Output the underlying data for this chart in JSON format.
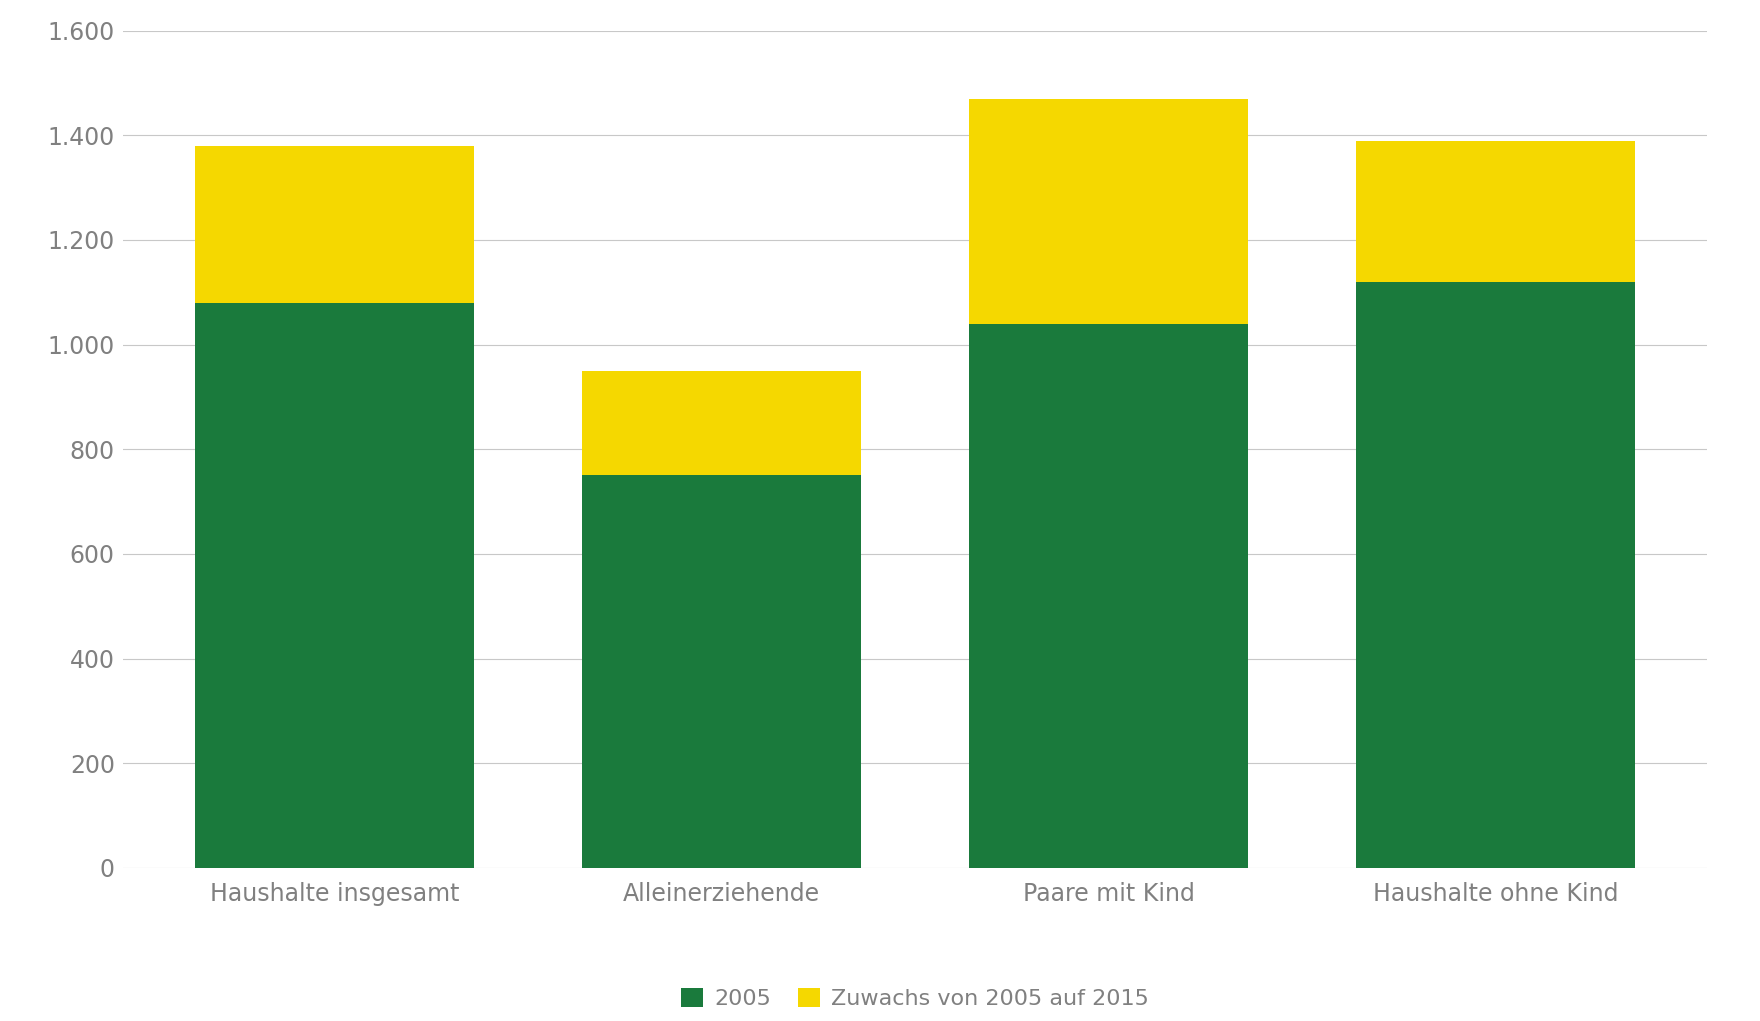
{
  "categories": [
    "Haushalte insgesamt",
    "Alleinerziehende",
    "Paare mit Kind",
    "Haushalte ohne Kind"
  ],
  "base_2005": [
    1080,
    750,
    1040,
    1120
  ],
  "zuwachs": [
    300,
    200,
    430,
    270
  ],
  "color_2005": "#1a7a3c",
  "color_zuwachs": "#f5d800",
  "legend_labels": [
    "2005",
    "Zuwachs von 2005 auf 2015"
  ],
  "ylim": [
    0,
    1600
  ],
  "yticks": [
    0,
    200,
    400,
    600,
    800,
    1000,
    1200,
    1400,
    1600
  ],
  "ytick_labels": [
    "0",
    "200",
    "400",
    "600",
    "800",
    "1.000",
    "1.200",
    "1.400",
    "1.600"
  ],
  "background_color": "#ffffff",
  "grid_color": "#c8c8c8",
  "bar_width": 0.72,
  "tick_label_color": "#808080",
  "tick_fontsize": 17,
  "legend_fontsize": 16
}
